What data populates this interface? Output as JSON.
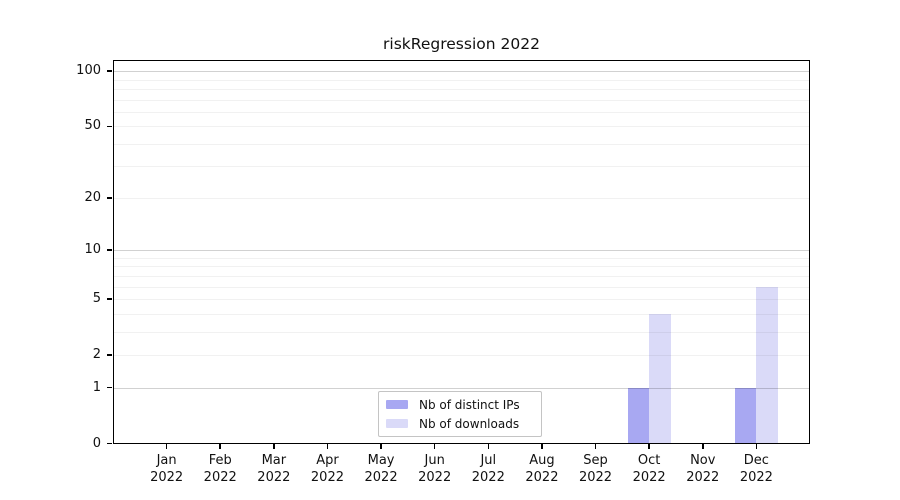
{
  "title": "riskRegression 2022",
  "chart_data": {
    "type": "bar",
    "title": "riskRegression 2022",
    "categories": [
      "Jan",
      "Feb",
      "Mar",
      "Apr",
      "May",
      "Jun",
      "Jul",
      "Aug",
      "Sep",
      "Oct",
      "Nov",
      "Dec"
    ],
    "year": "2022",
    "series": [
      {
        "name": "Nb of distinct IPs",
        "color": "#a8a8f2",
        "values": [
          0,
          0,
          0,
          0,
          0,
          0,
          0,
          0,
          0,
          1,
          0,
          1
        ]
      },
      {
        "name": "Nb of downloads",
        "color": "#dadaf8",
        "values": [
          0,
          0,
          0,
          0,
          0,
          0,
          0,
          0,
          0,
          4,
          0,
          6
        ]
      }
    ],
    "y_scale": "log1p",
    "ylim": [
      0,
      115
    ],
    "y_ticks": [
      0,
      1,
      2,
      5,
      10,
      20,
      50,
      100
    ],
    "grid": {
      "major_values": [
        1,
        10,
        100
      ],
      "minor_values": [
        2,
        3,
        4,
        5,
        6,
        7,
        8,
        9,
        20,
        30,
        40,
        50,
        60,
        70,
        80,
        90
      ]
    },
    "legend_position": "bottom-center-inside"
  },
  "colors": {
    "major_grid": "rgba(0,0,0,0.18)",
    "minor_grid": "rgba(0,0,0,0.055)",
    "axis": "#000000",
    "text": "#111111"
  }
}
